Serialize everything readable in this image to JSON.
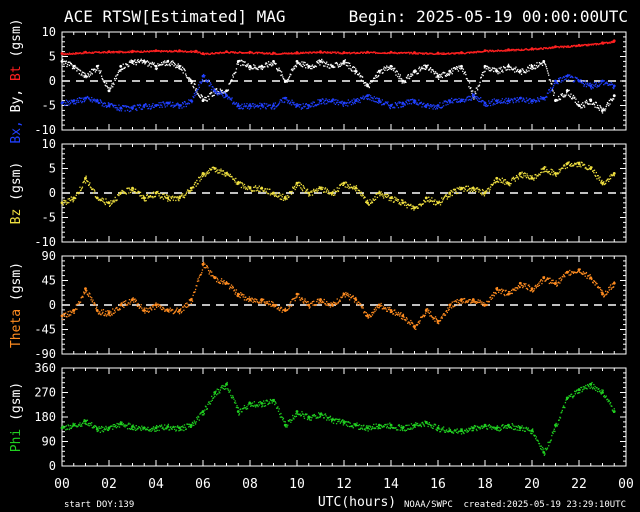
{
  "header": {
    "title": "ACE RTSW[Estimated] MAG",
    "begin": "Begin: 2025-05-19 00:00:00UTC"
  },
  "footer": {
    "start_doy_label": "start DOY:",
    "start_doy_value": "139",
    "xlabel": "UTC(hours)",
    "agency": "NOAA/SWPC",
    "created": "created:2025-05-19 23:29:10UTC"
  },
  "colors": {
    "background": "#000000",
    "frame": "#ffffff",
    "bx": "#2040ff",
    "by": "#ffffff",
    "bt": "#ff2020",
    "bz": "#f0e040",
    "theta": "#ff8c20",
    "phi": "#20d020"
  },
  "chart_data": [
    {
      "type": "scatter",
      "panel": "B components",
      "ylabel_parts": [
        {
          "text": "Bx,",
          "color": "#2040ff"
        },
        {
          "text": " By,",
          "color": "#ffffff"
        },
        {
          "text": " Bt",
          "color": "#ff2020"
        },
        {
          "text": " (gsm)",
          "color": "#ffffff"
        }
      ],
      "ylim": [
        -10,
        10
      ],
      "yticks": [
        -10,
        -5,
        0,
        5,
        10
      ],
      "zero_line": true,
      "series": [
        {
          "name": "Bt",
          "color": "#ff2020",
          "x": [
            0,
            1,
            2,
            3,
            4,
            5,
            5.7,
            6,
            7,
            8,
            9,
            10,
            11,
            12,
            13,
            14,
            15,
            16,
            17,
            18,
            19,
            20,
            21,
            22,
            23,
            23.5
          ],
          "y": [
            5.6,
            5.9,
            6.0,
            6.1,
            6.2,
            6.2,
            6.1,
            5.6,
            6.0,
            5.9,
            5.7,
            5.8,
            6.0,
            5.8,
            5.9,
            5.9,
            5.8,
            5.7,
            5.8,
            6.2,
            6.4,
            6.6,
            7.0,
            7.3,
            7.8,
            8.2
          ]
        },
        {
          "name": "By",
          "color": "#ffffff",
          "x": [
            0,
            0.5,
            1,
            1.5,
            2,
            2.5,
            3,
            3.5,
            4,
            4.5,
            5,
            5.5,
            6,
            6.5,
            7,
            7.5,
            8,
            8.5,
            9,
            9.5,
            10,
            10.5,
            11,
            11.5,
            12,
            12.5,
            13,
            13.5,
            14,
            14.5,
            15,
            15.5,
            16,
            16.5,
            17,
            17.5,
            18,
            18.5,
            19,
            19.5,
            20,
            20.5,
            21,
            21.5,
            22,
            22.5,
            23,
            23.5
          ],
          "y": [
            4,
            3,
            1,
            3,
            -2,
            3,
            4,
            4,
            3,
            4,
            3,
            0,
            -4,
            -2,
            -2,
            4,
            3,
            3,
            4,
            0,
            4,
            3,
            4,
            3,
            4,
            2,
            -1,
            2,
            3,
            0,
            2,
            3,
            1,
            2,
            3,
            -3,
            3,
            2,
            3,
            2,
            3,
            4,
            -4,
            -2,
            -5,
            -4,
            -6,
            -3
          ]
        },
        {
          "name": "Bx",
          "color": "#2040ff",
          "x": [
            0,
            0.5,
            1,
            1.5,
            2,
            2.5,
            3,
            3.5,
            4,
            4.5,
            5,
            5.5,
            6,
            6.5,
            7,
            7.5,
            8,
            8.5,
            9,
            9.5,
            10,
            10.5,
            11,
            11.5,
            12,
            12.5,
            13,
            13.5,
            14,
            14.5,
            15,
            15.5,
            16,
            16.5,
            17,
            17.5,
            18,
            18.5,
            19,
            19.5,
            20,
            20.5,
            21,
            21.5,
            22,
            22.5,
            23,
            23.5
          ],
          "y": [
            -4.5,
            -4,
            -3.5,
            -4,
            -5,
            -5.5,
            -5.5,
            -5,
            -5,
            -4.5,
            -5,
            -4,
            1,
            -2,
            -3,
            -5,
            -5,
            -5,
            -5,
            -3.5,
            -5,
            -5,
            -4,
            -4,
            -4.5,
            -4,
            -3,
            -4,
            -5,
            -4.5,
            -4,
            -5,
            -5,
            -4,
            -4,
            -3,
            -4.5,
            -4,
            -4,
            -3.5,
            -4,
            -3.5,
            0,
            1,
            0,
            -1,
            0,
            -1
          ]
        }
      ]
    },
    {
      "type": "scatter",
      "panel": "Bz",
      "ylabel_parts": [
        {
          "text": "Bz",
          "color": "#f0e040"
        },
        {
          "text": " (gsm)",
          "color": "#ffffff"
        }
      ],
      "ylim": [
        -10,
        10
      ],
      "yticks": [
        -10,
        -5,
        0,
        5,
        10
      ],
      "zero_line": true,
      "series": [
        {
          "name": "Bz",
          "color": "#f0e040",
          "x": [
            0,
            0.5,
            1,
            1.5,
            2,
            2.5,
            3,
            3.5,
            4,
            4.5,
            5,
            5.5,
            6,
            6.5,
            7,
            7.5,
            8,
            8.5,
            9,
            9.5,
            10,
            10.5,
            11,
            11.5,
            12,
            12.5,
            13,
            13.5,
            14,
            14.5,
            15,
            15.5,
            16,
            16.5,
            17,
            17.5,
            18,
            18.5,
            19,
            19.5,
            20,
            20.5,
            21,
            21.5,
            22,
            22.5,
            23,
            23.5
          ],
          "y": [
            -2,
            -1,
            3,
            -1,
            -2,
            0,
            1,
            -1,
            0,
            -1,
            -1,
            1,
            4,
            5,
            4,
            2,
            1,
            1,
            0,
            -1,
            2,
            0,
            1,
            0,
            2,
            1,
            -2,
            0,
            -1,
            -2,
            -3,
            -1,
            -2,
            0,
            1,
            1,
            0,
            3,
            2,
            4,
            3,
            5,
            4,
            6,
            6,
            5,
            2,
            4
          ]
        }
      ]
    },
    {
      "type": "scatter",
      "panel": "Theta",
      "ylabel_parts": [
        {
          "text": "Theta",
          "color": "#ff8c20"
        },
        {
          "text": " (gsm)",
          "color": "#ffffff"
        }
      ],
      "ylim": [
        -90,
        90
      ],
      "yticks": [
        -90,
        -45,
        0,
        45,
        90
      ],
      "zero_line": true,
      "series": [
        {
          "name": "Theta",
          "color": "#ff8c20",
          "x": [
            0,
            0.5,
            1,
            1.5,
            2,
            2.5,
            3,
            3.5,
            4,
            4.5,
            5,
            5.5,
            6,
            6.5,
            7,
            7.5,
            8,
            8.5,
            9,
            9.5,
            10,
            10.5,
            11,
            11.5,
            12,
            12.5,
            13,
            13.5,
            14,
            14.5,
            15,
            15.5,
            16,
            16.5,
            17,
            17.5,
            18,
            18.5,
            19,
            19.5,
            20,
            20.5,
            21,
            21.5,
            22,
            22.5,
            23,
            23.5
          ],
          "y": [
            -20,
            -10,
            30,
            -10,
            -15,
            0,
            10,
            -10,
            0,
            -10,
            -10,
            10,
            75,
            50,
            40,
            20,
            10,
            10,
            0,
            -10,
            20,
            0,
            10,
            0,
            20,
            10,
            -20,
            0,
            -10,
            -20,
            -40,
            -10,
            -30,
            0,
            10,
            10,
            0,
            30,
            20,
            40,
            30,
            50,
            40,
            60,
            65,
            50,
            20,
            40
          ]
        }
      ]
    },
    {
      "type": "scatter",
      "panel": "Phi",
      "ylabel_parts": [
        {
          "text": "Phi",
          "color": "#20d020"
        },
        {
          "text": " (gsm)",
          "color": "#ffffff"
        }
      ],
      "ylim": [
        0,
        360
      ],
      "yticks": [
        0,
        90,
        180,
        270,
        360
      ],
      "zero_line": false,
      "series": [
        {
          "name": "Phi",
          "color": "#20d020",
          "x": [
            0,
            0.5,
            1,
            1.5,
            2,
            2.5,
            3,
            3.5,
            4,
            4.5,
            5,
            5.5,
            6,
            6.5,
            7,
            7.5,
            8,
            8.5,
            9,
            9.5,
            10,
            10.5,
            11,
            11.5,
            12,
            12.5,
            13,
            13.5,
            14,
            14.5,
            15,
            15.5,
            16,
            16.5,
            17,
            17.5,
            18,
            18.5,
            19,
            19.5,
            20,
            20.5,
            21,
            21.5,
            22,
            22.5,
            23,
            23.5
          ],
          "y": [
            140,
            150,
            165,
            135,
            140,
            155,
            145,
            140,
            140,
            145,
            140,
            150,
            200,
            270,
            300,
            200,
            230,
            230,
            240,
            150,
            200,
            180,
            190,
            170,
            160,
            150,
            140,
            150,
            150,
            140,
            150,
            160,
            140,
            130,
            130,
            140,
            150,
            140,
            150,
            140,
            130,
            50,
            150,
            250,
            280,
            300,
            270,
            200
          ]
        }
      ]
    }
  ],
  "x_axis": {
    "xlim": [
      0,
      24
    ],
    "ticks": [
      "00",
      "02",
      "04",
      "06",
      "08",
      "10",
      "12",
      "14",
      "16",
      "18",
      "20",
      "22",
      "00"
    ]
  }
}
